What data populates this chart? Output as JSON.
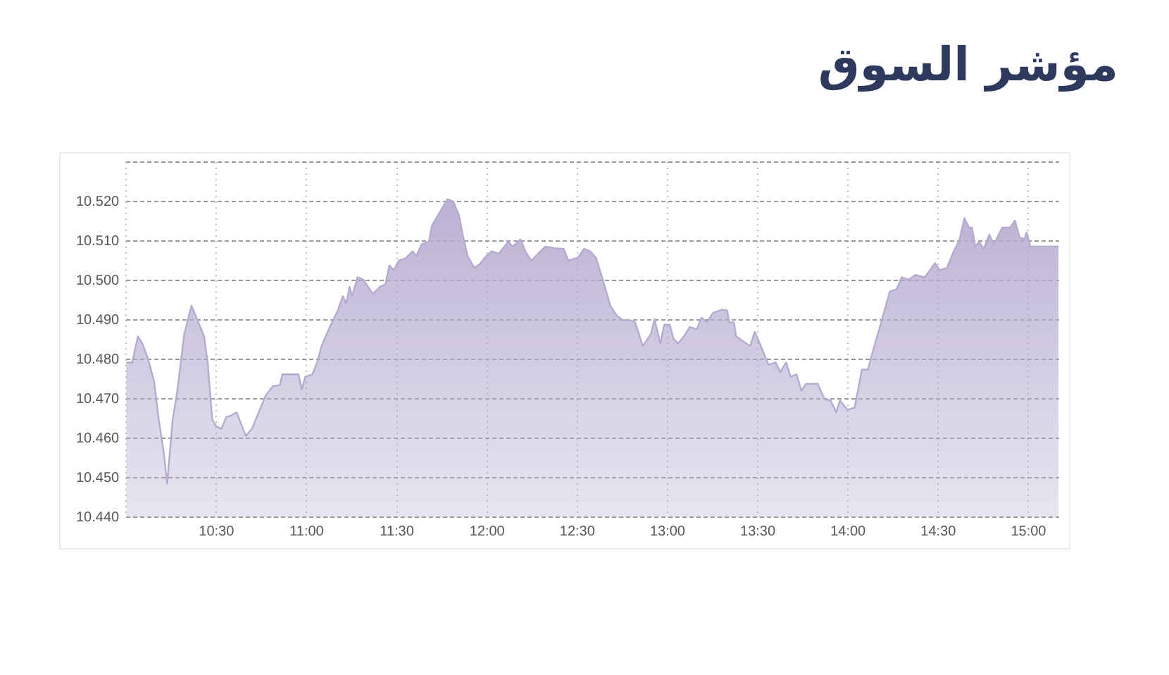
{
  "chart_data": {
    "type": "area",
    "title": "مؤشر السوق",
    "x": [
      10,
      10.033,
      10.065,
      10.09,
      10.122,
      10.155,
      10.18,
      10.207,
      10.227,
      10.258,
      10.283,
      10.322,
      10.362,
      10.4,
      10.432,
      10.452,
      10.477,
      10.498,
      10.528,
      10.555,
      10.58,
      10.612,
      10.637,
      10.663,
      10.697,
      10.735,
      10.773,
      10.813,
      10.852,
      10.865,
      10.955,
      10.973,
      10.993,
      11.032,
      11.058,
      11.083,
      11.122,
      11.173,
      11.2,
      11.22,
      11.238,
      11.252,
      11.282,
      11.315,
      11.367,
      11.407,
      11.437,
      11.458,
      11.483,
      11.51,
      11.548,
      11.587,
      11.607,
      11.638,
      11.677,
      11.695,
      11.742,
      11.78,
      11.813,
      11.845,
      11.865,
      11.892,
      11.93,
      11.96,
      11.995,
      12.025,
      12.065,
      12.117,
      12.142,
      12.185,
      12.212,
      12.245,
      12.283,
      12.322,
      12.373,
      12.425,
      12.45,
      12.503,
      12.537,
      12.572,
      12.605,
      12.645,
      12.683,
      12.717,
      12.748,
      12.787,
      12.82,
      12.863,
      12.908,
      12.928,
      12.96,
      12.982,
      13.012,
      13.033,
      13.058,
      13.09,
      13.123,
      13.162,
      13.188,
      13.218,
      13.252,
      13.303,
      13.33,
      13.342,
      13.368,
      13.38,
      13.418,
      13.458,
      13.483,
      13.522,
      13.56,
      13.6,
      13.625,
      13.657,
      13.682,
      13.715,
      13.742,
      13.767,
      13.832,
      13.87,
      13.903,
      13.935,
      13.955,
      13.998,
      14.037,
      14.077,
      14.11,
      14.135,
      14.18,
      14.232,
      14.27,
      14.297,
      14.335,
      14.373,
      14.425,
      14.482,
      14.508,
      14.548,
      14.58,
      14.618,
      14.645,
      14.67,
      14.687,
      14.705,
      14.727,
      14.752,
      14.783,
      14.808,
      14.855,
      14.898,
      14.925,
      14.95,
      14.977,
      14.99,
      15.01,
      15.167
    ],
    "series": [
      {
        "color": "#b5abd0",
        "values": [
          10.4792,
          10.4792,
          10.4858,
          10.484,
          10.48,
          10.4744,
          10.4648,
          10.457,
          10.4485,
          10.4648,
          10.472,
          10.4864,
          10.4936,
          10.4894,
          10.4858,
          10.479,
          10.4648,
          10.463,
          10.4624,
          10.4654,
          10.4657,
          10.4666,
          10.4636,
          10.4606,
          10.4624,
          10.4666,
          10.4708,
          10.4732,
          10.4735,
          10.4762,
          10.4762,
          10.4724,
          10.4756,
          10.4762,
          10.4792,
          10.4834,
          10.4876,
          10.4924,
          10.496,
          10.4942,
          10.4984,
          10.496,
          10.5008,
          10.5002,
          10.4966,
          10.4984,
          10.499,
          10.5038,
          10.5026,
          10.505,
          10.5056,
          10.5074,
          10.5062,
          10.5092,
          10.5098,
          10.514,
          10.5176,
          10.5206,
          10.52,
          10.5164,
          10.5116,
          10.5062,
          10.5032,
          10.5042,
          10.5062,
          10.5074,
          10.5068,
          10.5098,
          10.5086,
          10.5104,
          10.5074,
          10.505,
          10.5068,
          10.5086,
          10.5082,
          10.508,
          10.505,
          10.5058,
          10.508,
          10.5074,
          10.5056,
          10.4996,
          10.4936,
          10.4912,
          10.49,
          10.49,
          10.4894,
          10.4834,
          10.4864,
          10.4902,
          10.484,
          10.4888,
          10.4888,
          10.4852,
          10.484,
          10.4858,
          10.4882,
          10.4876,
          10.4906,
          10.4894,
          10.4918,
          10.4926,
          10.4924,
          10.4894,
          10.4894,
          10.4858,
          10.4846,
          10.4834,
          10.487,
          10.4828,
          10.4786,
          10.4792,
          10.4768,
          10.4792,
          10.4756,
          10.4762,
          10.472,
          10.4738,
          10.4738,
          10.4699,
          10.4696,
          10.4666,
          10.4696,
          10.4672,
          10.4678,
          10.4774,
          10.4774,
          10.4816,
          10.4888,
          10.4972,
          10.4978,
          10.5008,
          10.5002,
          10.5014,
          10.5008,
          10.5044,
          10.5026,
          10.5032,
          10.5068,
          10.5104,
          10.5158,
          10.5134,
          10.5134,
          10.5086,
          10.5098,
          10.508,
          10.5116,
          10.5092,
          10.5134,
          10.5134,
          10.5152,
          10.511,
          10.5104,
          10.5122,
          10.5086,
          10.5086
        ]
      }
    ],
    "xlim": [
      10,
      15.17
    ],
    "xticks": [
      {
        "value": 10,
        "label": null
      },
      {
        "value": 10.5,
        "label": "10:30"
      },
      {
        "value": 11,
        "label": "11:00"
      },
      {
        "value": 11.5,
        "label": "11:30"
      },
      {
        "value": 12,
        "label": "12:00"
      },
      {
        "value": 12.5,
        "label": "12:30"
      },
      {
        "value": 13,
        "label": "13:00"
      },
      {
        "value": 13.5,
        "label": "13:30"
      },
      {
        "value": 14,
        "label": "14:00"
      },
      {
        "value": 14.5,
        "label": "14:30"
      },
      {
        "value": 15,
        "label": "15:00"
      }
    ],
    "ylim": [
      10.44,
      10.53
    ],
    "yticks": [
      {
        "value": 10.44,
        "label": "10.440"
      },
      {
        "value": 10.45,
        "label": "10.450"
      },
      {
        "value": 10.46,
        "label": "10.460"
      },
      {
        "value": 10.47,
        "label": "10.470"
      },
      {
        "value": 10.48,
        "label": "10.480"
      },
      {
        "value": 10.49,
        "label": "10.490"
      },
      {
        "value": 10.5,
        "label": "10.500"
      },
      {
        "value": 10.51,
        "label": "10.510"
      },
      {
        "value": 10.52,
        "label": "10.520"
      },
      {
        "value": 10.53,
        "label": null
      }
    ],
    "grid": true,
    "legend": false,
    "marker": "none"
  }
}
